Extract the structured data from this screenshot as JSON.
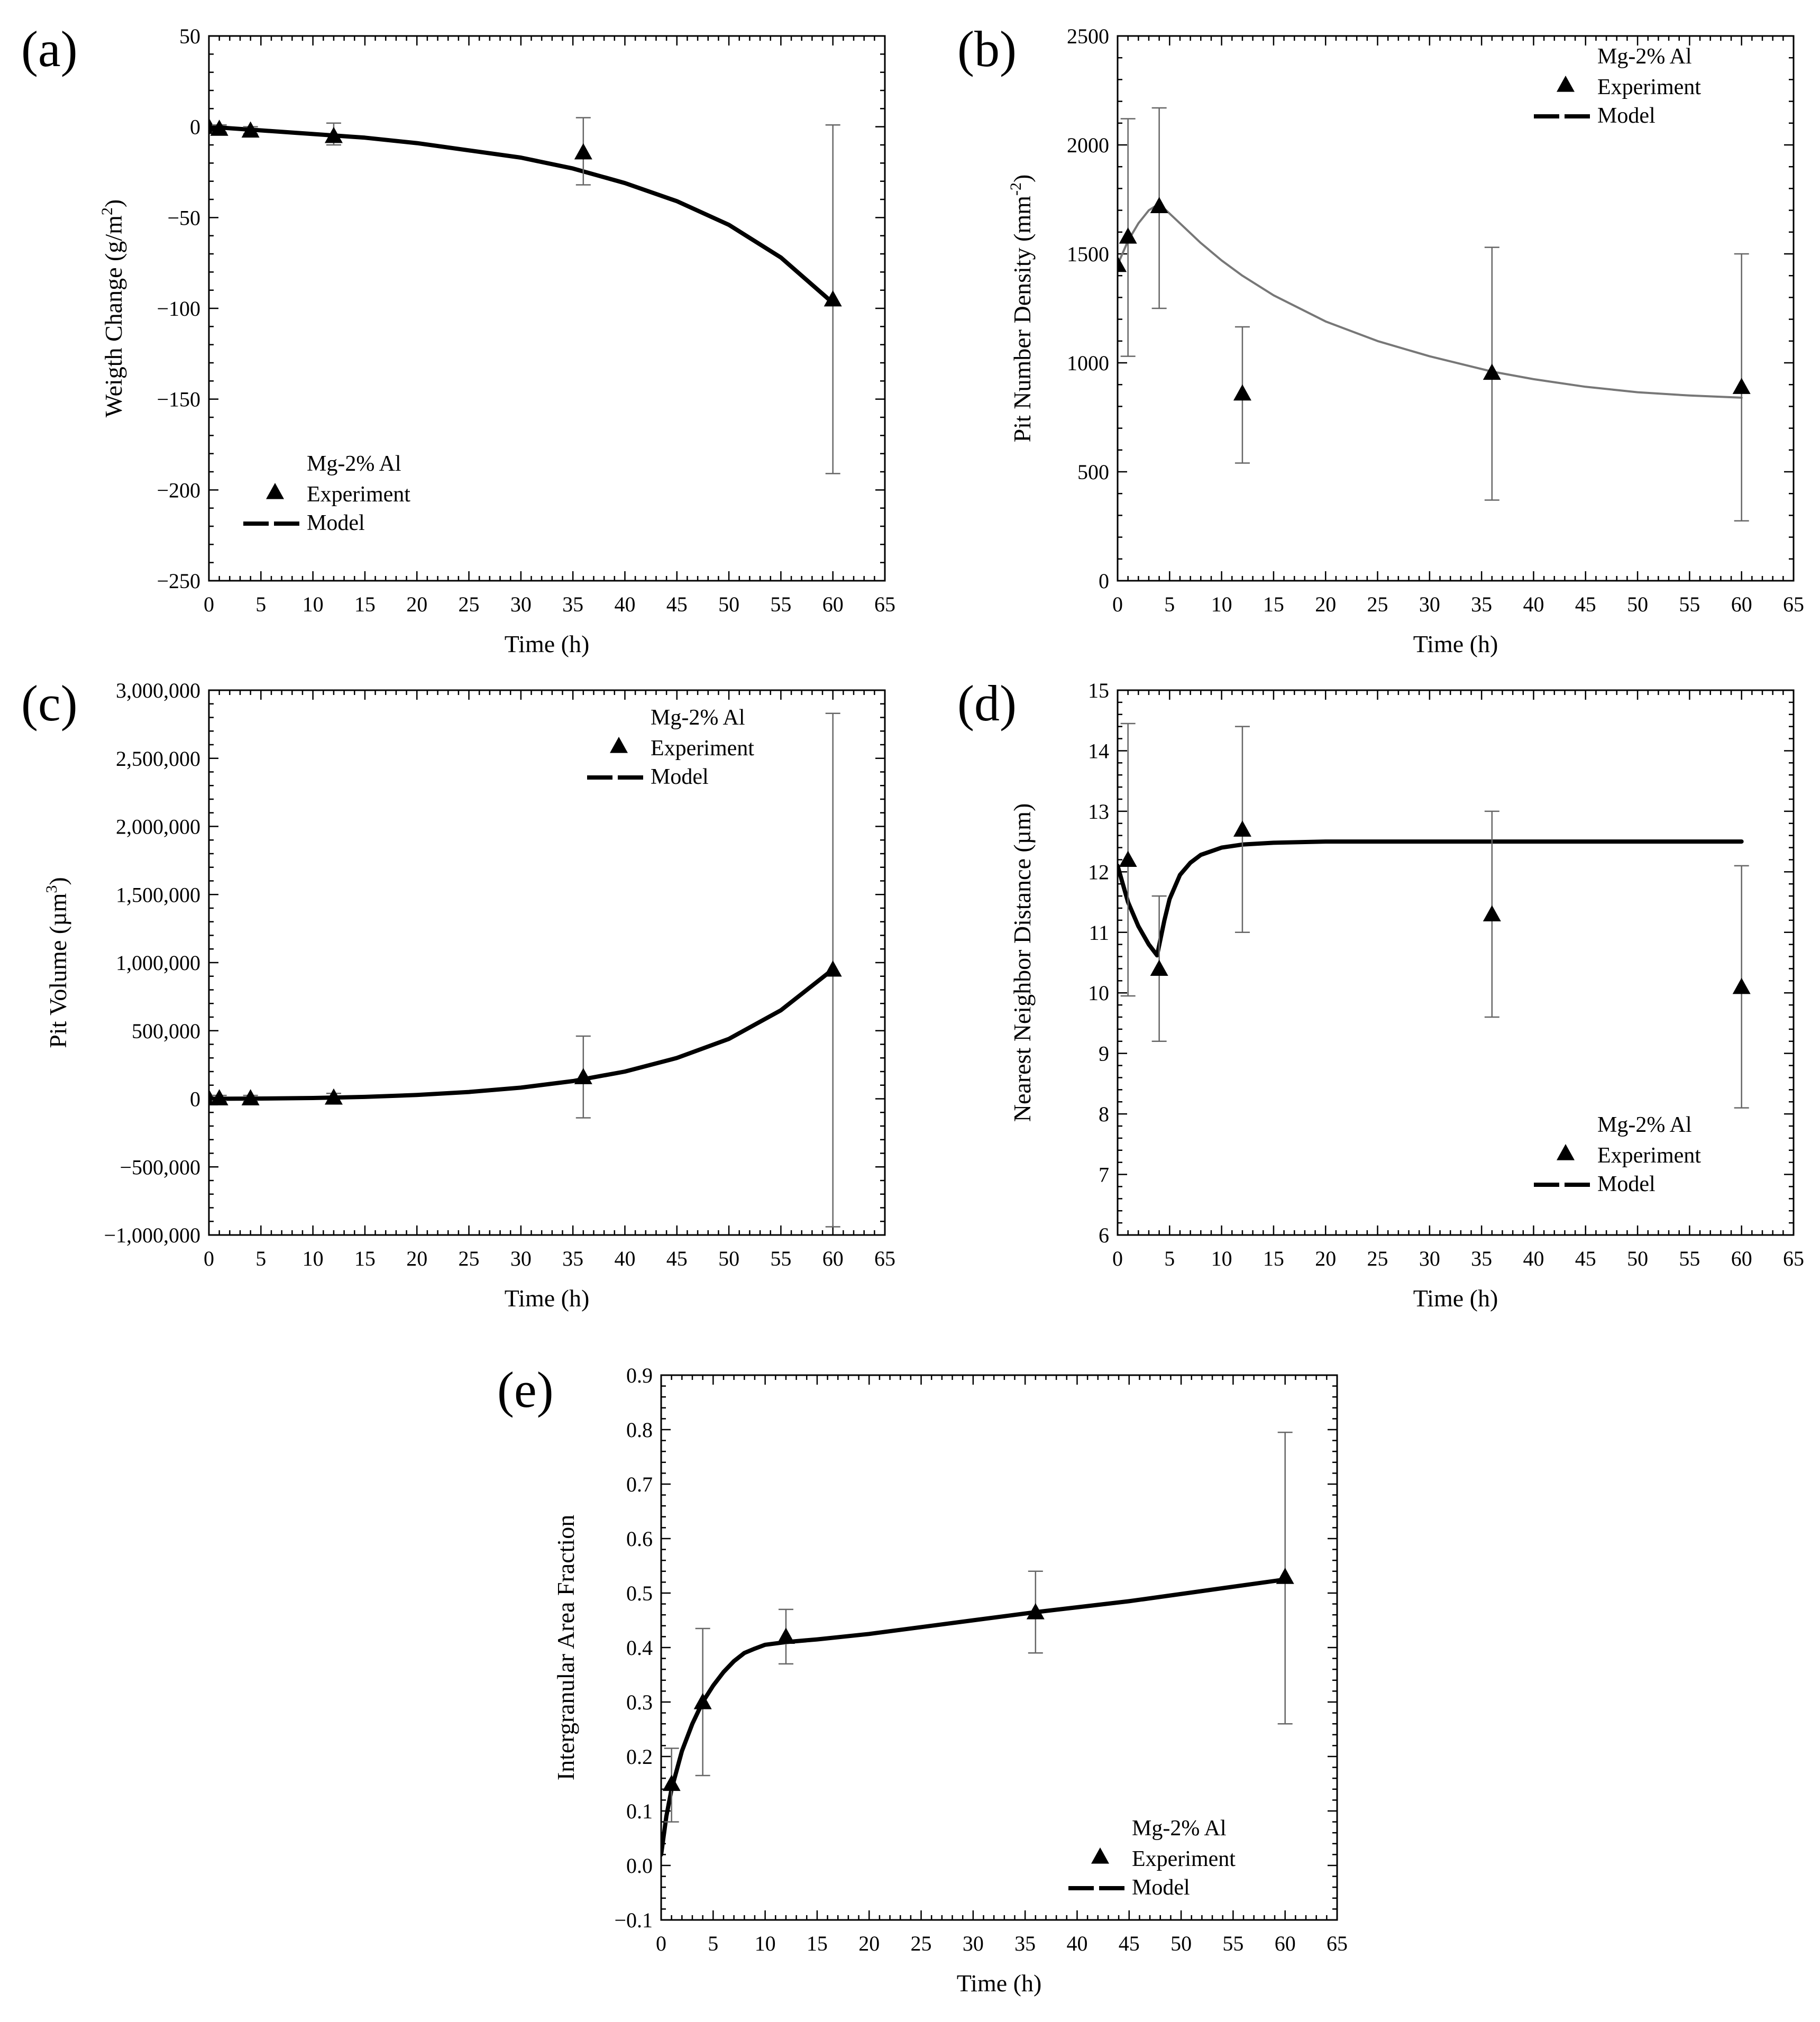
{
  "figure": {
    "description_title": "Mg-2% Al corrosion model vs experiment"
  },
  "chart_data": [
    {
      "id": "a",
      "panel_label": "(a)",
      "type": "line",
      "title": "",
      "xlabel": "Time (h)",
      "ylabel": "Weigth Change (g/m",
      "ylabel_sup": "2",
      "ylabel_tail": ")",
      "xlim": [
        0,
        65
      ],
      "ylim": [
        -250,
        50
      ],
      "xticks": [
        0,
        5,
        10,
        15,
        20,
        25,
        30,
        35,
        40,
        45,
        50,
        55,
        60,
        65
      ],
      "yticks": [
        50,
        0,
        -50,
        -100,
        -150,
        -200,
        -250
      ],
      "ytick_labels": [
        "50",
        "0",
        "−50",
        "−100",
        "−150",
        "−200",
        "−250"
      ],
      "legend": {
        "position": "bottom-left",
        "title": "Mg-2% Al",
        "experiment": "Experiment",
        "model": "Model"
      },
      "experiment": {
        "x": [
          0,
          1,
          4,
          12,
          36,
          60
        ],
        "y": [
          0,
          -1,
          -2,
          -5,
          -14,
          -95
        ],
        "err_low": [
          0,
          -3,
          -4,
          -10,
          -32,
          -191
        ],
        "err_high": [
          0,
          1,
          0,
          2,
          5,
          1
        ]
      },
      "model": {
        "x": [
          0,
          5,
          10,
          15,
          20,
          25,
          30,
          35,
          40,
          45,
          50,
          55,
          60
        ],
        "y": [
          0,
          -2,
          -4,
          -6,
          -9,
          -13,
          -17,
          -23,
          -31,
          -41,
          -54,
          -72,
          -97
        ]
      }
    },
    {
      "id": "b",
      "panel_label": "(b)",
      "type": "line",
      "title": "",
      "xlabel": "Time (h)",
      "ylabel": "Pit Number Density (mm",
      "ylabel_sup": "-2",
      "ylabel_tail": ")",
      "xlim": [
        0,
        65
      ],
      "ylim": [
        0,
        2500
      ],
      "xticks": [
        0,
        5,
        10,
        15,
        20,
        25,
        30,
        35,
        40,
        45,
        50,
        55,
        60,
        65
      ],
      "yticks": [
        2500,
        2000,
        1500,
        1000,
        500,
        0
      ],
      "ytick_labels": [
        "2500",
        "2000",
        "1500",
        "1000",
        "500",
        "0"
      ],
      "legend": {
        "position": "top-right",
        "title": "Mg-2% Al",
        "experiment": "Experiment",
        "model": "Model"
      },
      "experiment": {
        "x": [
          0,
          1,
          4,
          12,
          36,
          60
        ],
        "y": [
          1450,
          1580,
          1720,
          860,
          955,
          890
        ],
        "err_low": [
          1450,
          1030,
          1250,
          540,
          370,
          275
        ],
        "err_high": [
          1450,
          2120,
          2170,
          1165,
          1530,
          1500
        ]
      },
      "model": {
        "x": [
          0,
          1,
          2,
          3,
          4,
          6,
          8,
          10,
          12,
          15,
          20,
          25,
          30,
          36,
          40,
          45,
          50,
          55,
          60
        ],
        "y": [
          1450,
          1560,
          1640,
          1700,
          1730,
          1640,
          1550,
          1470,
          1400,
          1310,
          1190,
          1100,
          1030,
          960,
          925,
          890,
          865,
          850,
          840
        ]
      }
    },
    {
      "id": "c",
      "panel_label": "(c)",
      "type": "line",
      "title": "",
      "xlabel": "Time (h)",
      "ylabel": "Pit Volume (µm",
      "ylabel_sup": "3",
      "ylabel_tail": ")",
      "xlim": [
        0,
        65
      ],
      "ylim": [
        -1000000,
        3000000
      ],
      "xticks": [
        0,
        5,
        10,
        15,
        20,
        25,
        30,
        35,
        40,
        45,
        50,
        55,
        60,
        65
      ],
      "yticks": [
        3000000,
        2500000,
        2000000,
        1500000,
        1000000,
        500000,
        0,
        -500000,
        -1000000
      ],
      "ytick_labels": [
        "3,000,000",
        "2,500,000",
        "2,000,000",
        "1,500,000",
        "1,000,000",
        "500,000",
        "0",
        "−500,000",
        "−1,000,000"
      ],
      "legend": {
        "position": "top-right",
        "title": "Mg-2% Al",
        "experiment": "Experiment",
        "model": "Model"
      },
      "experiment": {
        "x": [
          0,
          1,
          4,
          12,
          36,
          60
        ],
        "y": [
          5000,
          5000,
          5000,
          10000,
          160000,
          950000
        ],
        "err_low": [
          -15000,
          -15000,
          -15000,
          -30000,
          -140000,
          -940000
        ],
        "err_high": [
          25000,
          25000,
          25000,
          40000,
          460000,
          2830000
        ]
      },
      "model": {
        "x": [
          0,
          5,
          10,
          15,
          20,
          25,
          30,
          35,
          40,
          45,
          50,
          55,
          60
        ],
        "y": [
          0,
          2000,
          6000,
          14000,
          28000,
          50000,
          82000,
          130000,
          200000,
          300000,
          440000,
          650000,
          950000
        ]
      }
    },
    {
      "id": "d",
      "panel_label": "(d)",
      "type": "line",
      "title": "",
      "xlabel": "Time (h)",
      "ylabel": "Nearest Neighbor Distance (µm)",
      "ylabel_sup": "",
      "ylabel_tail": "",
      "xlim": [
        0,
        65
      ],
      "ylim": [
        6,
        15
      ],
      "xticks": [
        0,
        5,
        10,
        15,
        20,
        25,
        30,
        35,
        40,
        45,
        50,
        55,
        60,
        65
      ],
      "yticks": [
        15,
        14,
        13,
        12,
        11,
        10,
        9,
        8,
        7,
        6
      ],
      "ytick_labels": [
        "15",
        "14",
        "13",
        "12",
        "11",
        "10",
        "9",
        "8",
        "7",
        "6"
      ],
      "legend": {
        "position": "bottom-right",
        "title": "Mg-2% Al",
        "experiment": "Experiment",
        "model": "Model"
      },
      "experiment": {
        "x": [
          1,
          4,
          12,
          36,
          60
        ],
        "y": [
          12.2,
          10.4,
          12.7,
          11.3,
          10.1
        ],
        "err_low": [
          9.95,
          9.2,
          11.0,
          9.6,
          8.1
        ],
        "err_high": [
          14.45,
          11.6,
          14.4,
          13.0,
          12.1
        ]
      },
      "model": {
        "x": [
          0,
          1,
          2,
          3,
          3.8,
          4.5,
          5,
          6,
          7,
          8,
          10,
          12,
          15,
          20,
          30,
          40,
          50,
          60
        ],
        "y": [
          12.1,
          11.5,
          11.1,
          10.8,
          10.62,
          11.2,
          11.55,
          11.95,
          12.15,
          12.28,
          12.4,
          12.45,
          12.48,
          12.5,
          12.5,
          12.5,
          12.5,
          12.5
        ]
      }
    },
    {
      "id": "e",
      "panel_label": "(e)",
      "type": "line",
      "title": "",
      "xlabel": "Time (h)",
      "ylabel": "Intergranular Area Fraction",
      "ylabel_sup": "",
      "ylabel_tail": "",
      "xlim": [
        0,
        65
      ],
      "ylim": [
        -0.1,
        0.9
      ],
      "xticks": [
        0,
        5,
        10,
        15,
        20,
        25,
        30,
        35,
        40,
        45,
        50,
        55,
        60,
        65
      ],
      "yticks": [
        0.9,
        0.8,
        0.7,
        0.6,
        0.5,
        0.4,
        0.3,
        0.2,
        0.1,
        0.0,
        -0.1
      ],
      "ytick_labels": [
        "0.9",
        "0.8",
        "0.7",
        "0.6",
        "0.5",
        "0.4",
        "0.3",
        "0.2",
        "0.1",
        "0.0",
        "−0.1"
      ],
      "legend": {
        "position": "bottom-right",
        "title": "Mg-2% Al",
        "experiment": "Experiment",
        "model": "Model"
      },
      "experiment": {
        "x": [
          1,
          4,
          12,
          36,
          60
        ],
        "y": [
          0.15,
          0.3,
          0.42,
          0.465,
          0.53
        ],
        "err_low": [
          0.08,
          0.165,
          0.37,
          0.39,
          0.26
        ],
        "err_high": [
          0.215,
          0.435,
          0.47,
          0.54,
          0.795
        ]
      },
      "model": {
        "x": [
          0,
          0.5,
          1,
          2,
          3,
          4,
          5,
          6,
          7,
          8,
          9,
          10,
          12,
          15,
          20,
          30,
          36,
          45,
          60
        ],
        "y": [
          0.02,
          0.09,
          0.14,
          0.21,
          0.26,
          0.3,
          0.33,
          0.355,
          0.375,
          0.39,
          0.398,
          0.405,
          0.41,
          0.415,
          0.425,
          0.45,
          0.465,
          0.485,
          0.525
        ]
      }
    }
  ]
}
